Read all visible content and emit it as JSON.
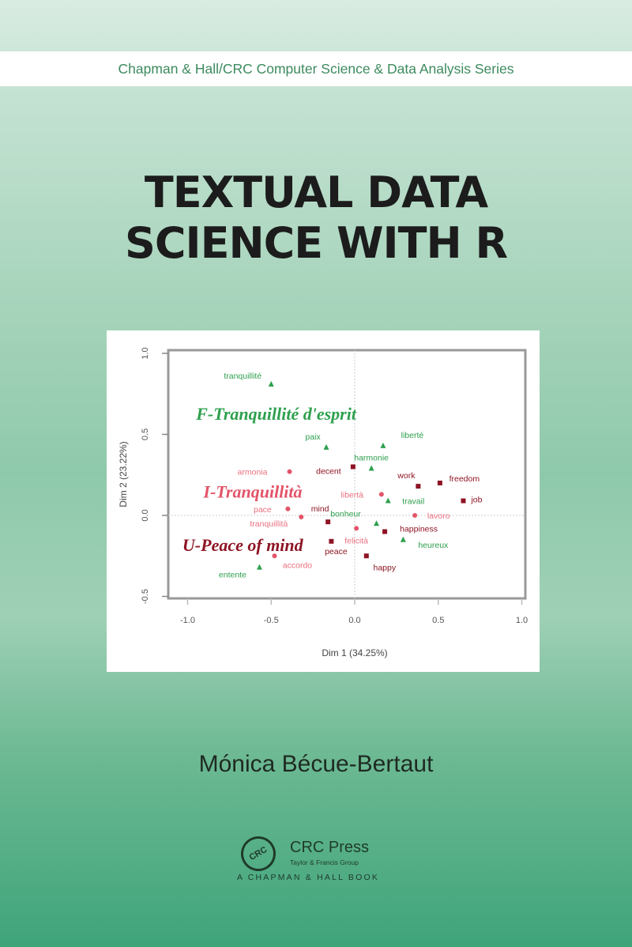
{
  "series_line": "Chapman & Hall/CRC Computer Science & Data Analysis Series",
  "title_lines": [
    "TEXTUAL DATA",
    "SCIENCE WITH R"
  ],
  "author": "Mónica Bécue-Bertaut",
  "publisher": {
    "logo_text": "CRC",
    "name": "CRC Press",
    "group": "Taylor & Francis Group",
    "tagline": "A CHAPMAN & HALL BOOK"
  },
  "colors": {
    "french": "#2ea04e",
    "italian": "#e35468",
    "english": "#8e1424"
  },
  "chart_data": {
    "type": "scatter",
    "xlabel": "Dim 1 (34.25%)",
    "ylabel": "Dim 2 (23.22%)",
    "xlim": [
      -1.1,
      1.05
    ],
    "ylim": [
      -0.5,
      1.0
    ],
    "xticks": [
      "-1.0",
      "-0.5",
      "0.0",
      "0.5",
      "1.0"
    ],
    "yticks": [
      "-0.5",
      "0.0",
      "0.5",
      "1.0"
    ],
    "grid": "dotted lines at x=0 and y=0",
    "points": [
      {
        "label": "tranquillité",
        "group": "french",
        "x": -0.5,
        "y": 0.81
      },
      {
        "label": "paix",
        "group": "french",
        "x": -0.17,
        "y": 0.42
      },
      {
        "label": "liberté",
        "group": "french",
        "x": 0.17,
        "y": 0.43
      },
      {
        "label": "harmonie",
        "group": "french",
        "x": 0.1,
        "y": 0.29
      },
      {
        "label": "armonia",
        "group": "italian",
        "x": -0.39,
        "y": 0.27
      },
      {
        "label": "decent",
        "group": "english",
        "x": -0.01,
        "y": 0.3
      },
      {
        "label": "work",
        "group": "english",
        "x": 0.38,
        "y": 0.18
      },
      {
        "label": "freedom",
        "group": "english",
        "x": 0.51,
        "y": 0.2
      },
      {
        "label": "libertà",
        "group": "italian",
        "x": 0.16,
        "y": 0.13
      },
      {
        "label": "travail",
        "group": "french",
        "x": 0.2,
        "y": 0.09
      },
      {
        "label": "job",
        "group": "english",
        "x": 0.65,
        "y": 0.09
      },
      {
        "label": "pace",
        "group": "italian",
        "x": -0.4,
        "y": 0.04
      },
      {
        "label": "mind",
        "group": "english",
        "x": -0.16,
        "y": -0.04
      },
      {
        "label": "tranquillità",
        "group": "italian",
        "x": -0.32,
        "y": -0.01
      },
      {
        "label": "lavoro",
        "group": "italian",
        "x": 0.36,
        "y": 0.0
      },
      {
        "label": "bonheur",
        "group": "french",
        "x": 0.13,
        "y": -0.05
      },
      {
        "label": "felicità",
        "group": "italian",
        "x": 0.01,
        "y": -0.08
      },
      {
        "label": "happiness",
        "group": "english",
        "x": 0.18,
        "y": -0.1
      },
      {
        "label": "heureux",
        "group": "french",
        "x": 0.29,
        "y": -0.15
      },
      {
        "label": "peace",
        "group": "english",
        "x": -0.14,
        "y": -0.16
      },
      {
        "label": "accordo",
        "group": "italian",
        "x": -0.48,
        "y": -0.25
      },
      {
        "label": "happy",
        "group": "english",
        "x": 0.07,
        "y": -0.25
      },
      {
        "label": "entente",
        "group": "french",
        "x": -0.57,
        "y": -0.32
      }
    ],
    "annotations": [
      {
        "text": "F-Tranquillité d'esprit",
        "group": "french",
        "x": -0.47,
        "y": 0.63
      },
      {
        "text": "I-Tranquillità",
        "group": "italian",
        "x": -0.61,
        "y": 0.15
      },
      {
        "text": "U-Peace of mind",
        "group": "english",
        "x": -0.67,
        "y": -0.18
      }
    ]
  }
}
